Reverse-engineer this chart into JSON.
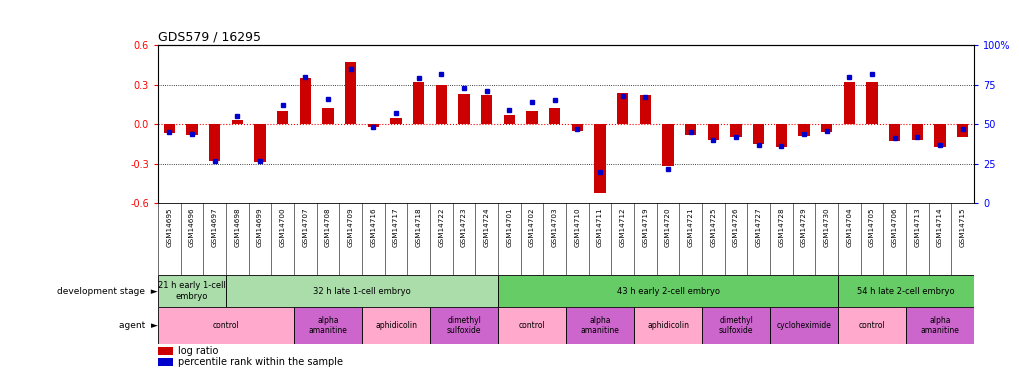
{
  "title": "GDS579 / 16295",
  "samples": [
    "GSM14695",
    "GSM14696",
    "GSM14697",
    "GSM14698",
    "GSM14699",
    "GSM14700",
    "GSM14707",
    "GSM14708",
    "GSM14709",
    "GSM14716",
    "GSM14717",
    "GSM14718",
    "GSM14722",
    "GSM14723",
    "GSM14724",
    "GSM14701",
    "GSM14702",
    "GSM14703",
    "GSM14710",
    "GSM14711",
    "GSM14712",
    "GSM14719",
    "GSM14720",
    "GSM14721",
    "GSM14725",
    "GSM14726",
    "GSM14727",
    "GSM14728",
    "GSM14729",
    "GSM14730",
    "GSM14704",
    "GSM14705",
    "GSM14706",
    "GSM14713",
    "GSM14714",
    "GSM14715"
  ],
  "log_ratio": [
    -0.07,
    -0.08,
    -0.28,
    0.03,
    -0.29,
    0.1,
    0.35,
    0.12,
    0.47,
    -0.02,
    0.05,
    0.32,
    0.3,
    0.23,
    0.22,
    0.07,
    0.1,
    0.12,
    -0.05,
    -0.52,
    0.24,
    0.22,
    -0.32,
    -0.08,
    -0.12,
    -0.1,
    -0.15,
    -0.17,
    -0.09,
    -0.06,
    0.32,
    0.32,
    -0.13,
    -0.12,
    -0.17,
    -0.1
  ],
  "percentile_rank": [
    45,
    44,
    27,
    55,
    27,
    62,
    80,
    66,
    85,
    48,
    57,
    79,
    82,
    73,
    71,
    59,
    64,
    65,
    47,
    20,
    68,
    67,
    22,
    45,
    40,
    42,
    37,
    36,
    44,
    46,
    80,
    82,
    41,
    42,
    37,
    47
  ],
  "dev_stage_groups": [
    {
      "label": "21 h early 1-cell\nembryo",
      "start": 0,
      "end": 3,
      "color": "#aaddaa"
    },
    {
      "label": "32 h late 1-cell embryo",
      "start": 3,
      "end": 15,
      "color": "#aaddaa"
    },
    {
      "label": "43 h early 2-cell embryo",
      "start": 15,
      "end": 30,
      "color": "#66cc66"
    },
    {
      "label": "54 h late 2-cell embryo",
      "start": 30,
      "end": 36,
      "color": "#66cc66"
    }
  ],
  "agent_groups": [
    {
      "label": "control",
      "start": 0,
      "end": 6,
      "color": "#ffaacc"
    },
    {
      "label": "alpha\namanitine",
      "start": 6,
      "end": 9,
      "color": "#cc66cc"
    },
    {
      "label": "aphidicolin",
      "start": 9,
      "end": 12,
      "color": "#ffaacc"
    },
    {
      "label": "dimethyl\nsulfoxide",
      "start": 12,
      "end": 15,
      "color": "#cc66cc"
    },
    {
      "label": "control",
      "start": 15,
      "end": 18,
      "color": "#ffaacc"
    },
    {
      "label": "alpha\namanitine",
      "start": 18,
      "end": 21,
      "color": "#cc66cc"
    },
    {
      "label": "aphidicolin",
      "start": 21,
      "end": 24,
      "color": "#ffaacc"
    },
    {
      "label": "dimethyl\nsulfoxide",
      "start": 24,
      "end": 27,
      "color": "#cc66cc"
    },
    {
      "label": "cycloheximide",
      "start": 27,
      "end": 30,
      "color": "#cc66cc"
    },
    {
      "label": "control",
      "start": 30,
      "end": 33,
      "color": "#ffaacc"
    },
    {
      "label": "alpha\namanitine",
      "start": 33,
      "end": 36,
      "color": "#cc66cc"
    }
  ],
  "ylim": [
    -0.6,
    0.6
  ],
  "yticks_left": [
    -0.6,
    -0.3,
    0.0,
    0.3,
    0.6
  ],
  "yticks_right": [
    0,
    25,
    50,
    75,
    100
  ],
  "bar_color": "#CC0000",
  "dot_color": "#0000CC",
  "background_color": "#FFFFFF",
  "xtick_bg": "#DDDDDD"
}
